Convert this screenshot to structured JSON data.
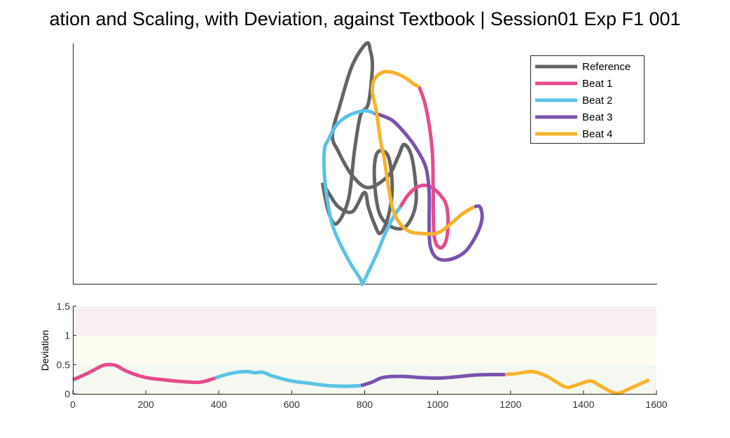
{
  "figure": {
    "title": "ation and Scaling, with Deviation, against Textbook | Session01 Exp F1 001"
  },
  "colors": {
    "reference": "#646464",
    "beat1": "#E64B8C",
    "beat2": "#5BC3E6",
    "beat3": "#7B52AE",
    "beat4": "#F8B32B",
    "band_high": "#F8F0F0",
    "band_mid": "#FDFDF2",
    "band_low": "#F4F8F0"
  },
  "chart_data": [
    {
      "type": "line",
      "name": "trajectory",
      "legend": {
        "placement": "top-right",
        "entries": [
          "Reference",
          "Beat 1",
          "Beat 2",
          "Beat 3",
          "Beat 4"
        ]
      },
      "series": [
        {
          "name": "Reference",
          "color": "#646464",
          "points": [
            [
              0.37,
              0.42
            ],
            [
              0.4,
              0.3
            ],
            [
              0.44,
              0.25
            ],
            [
              0.5,
              0.35
            ],
            [
              0.53,
              0.55
            ],
            [
              0.56,
              0.7
            ],
            [
              0.6,
              0.75
            ],
            [
              0.62,
              0.9
            ],
            [
              0.61,
              0.97
            ],
            [
              0.59,
              1.0
            ],
            [
              0.52,
              0.91
            ],
            [
              0.46,
              0.75
            ],
            [
              0.42,
              0.62
            ],
            [
              0.45,
              0.55
            ],
            [
              0.52,
              0.45
            ],
            [
              0.6,
              0.4
            ],
            [
              0.7,
              0.45
            ],
            [
              0.75,
              0.53
            ],
            [
              0.78,
              0.58
            ],
            [
              0.82,
              0.52
            ],
            [
              0.84,
              0.35
            ],
            [
              0.8,
              0.25
            ],
            [
              0.74,
              0.23
            ],
            [
              0.67,
              0.27
            ],
            [
              0.64,
              0.35
            ],
            [
              0.63,
              0.48
            ],
            [
              0.65,
              0.55
            ],
            [
              0.7,
              0.53
            ],
            [
              0.72,
              0.4
            ],
            [
              0.7,
              0.28
            ],
            [
              0.66,
              0.21
            ],
            [
              0.63,
              0.25
            ],
            [
              0.6,
              0.32
            ],
            [
              0.58,
              0.38
            ],
            [
              0.52,
              0.3
            ],
            [
              0.45,
              0.32
            ],
            [
              0.4,
              0.38
            ],
            [
              0.37,
              0.42
            ]
          ]
        },
        {
          "name": "Beat 1",
          "color": "#E64B8C",
          "points": [
            [
              0.855,
              0.82
            ],
            [
              0.89,
              0.73
            ],
            [
              0.92,
              0.56
            ],
            [
              0.925,
              0.4
            ],
            [
              0.93,
              0.2
            ],
            [
              0.96,
              0.15
            ],
            [
              0.99,
              0.18
            ],
            [
              1.0,
              0.26
            ],
            [
              0.99,
              0.33
            ],
            [
              0.96,
              0.37
            ],
            [
              0.92,
              0.4
            ],
            [
              0.88,
              0.41
            ],
            [
              0.84,
              0.4
            ],
            [
              0.8,
              0.37
            ],
            [
              0.76,
              0.32
            ]
          ]
        },
        {
          "name": "Beat 2",
          "color": "#5BC3E6",
          "points": [
            [
              0.76,
              0.32
            ],
            [
              0.72,
              0.27
            ],
            [
              0.68,
              0.2
            ],
            [
              0.64,
              0.12
            ],
            [
              0.6,
              0.05
            ],
            [
              0.57,
              0.0
            ],
            [
              0.56,
              0.02
            ],
            [
              0.5,
              0.1
            ],
            [
              0.43,
              0.22
            ],
            [
              0.4,
              0.32
            ],
            [
              0.38,
              0.45
            ],
            [
              0.38,
              0.56
            ],
            [
              0.4,
              0.6
            ],
            [
              0.44,
              0.66
            ],
            [
              0.5,
              0.7
            ],
            [
              0.58,
              0.72
            ],
            [
              0.63,
              0.71
            ]
          ]
        },
        {
          "name": "Beat 3",
          "color": "#7B52AE",
          "points": [
            [
              0.63,
              0.71
            ],
            [
              0.72,
              0.68
            ],
            [
              0.8,
              0.61
            ],
            [
              0.85,
              0.55
            ],
            [
              0.89,
              0.48
            ],
            [
              0.905,
              0.38
            ],
            [
              0.905,
              0.25
            ],
            [
              0.91,
              0.16
            ],
            [
              0.94,
              0.11
            ],
            [
              1.0,
              0.1
            ],
            [
              1.08,
              0.13
            ],
            [
              1.14,
              0.2
            ],
            [
              1.17,
              0.27
            ],
            [
              1.16,
              0.32
            ],
            [
              1.13,
              0.32
            ]
          ]
        },
        {
          "name": "Beat 4",
          "color": "#F8B32B",
          "points": [
            [
              1.13,
              0.32
            ],
            [
              1.07,
              0.29
            ],
            [
              1.0,
              0.24
            ],
            [
              0.94,
              0.21
            ],
            [
              0.86,
              0.21
            ],
            [
              0.8,
              0.22
            ],
            [
              0.75,
              0.26
            ],
            [
              0.72,
              0.32
            ],
            [
              0.7,
              0.41
            ],
            [
              0.68,
              0.52
            ],
            [
              0.66,
              0.6
            ],
            [
              0.64,
              0.72
            ],
            [
              0.62,
              0.8
            ],
            [
              0.63,
              0.85
            ],
            [
              0.67,
              0.88
            ],
            [
              0.72,
              0.88
            ],
            [
              0.78,
              0.86
            ],
            [
              0.83,
              0.83
            ],
            [
              0.855,
              0.82
            ]
          ]
        }
      ]
    },
    {
      "type": "line",
      "name": "deviation",
      "ylabel": "Deviation",
      "xlim": [
        0,
        1600
      ],
      "ylim": [
        0,
        1.5
      ],
      "xticks": [
        0,
        200,
        400,
        600,
        800,
        1000,
        1200,
        1400,
        1600
      ],
      "yticks": [
        0,
        0.5,
        1,
        1.5
      ],
      "ytick_labels": [
        "0",
        "0.5",
        "1",
        "1.5"
      ],
      "bands": [
        {
          "from": 1.0,
          "to": 1.5,
          "color": "#F8F0F0"
        },
        {
          "from": 0.5,
          "to": 1.0,
          "color": "#FDFDF2"
        },
        {
          "from": 0.0,
          "to": 0.5,
          "color": "#F4F8F0"
        }
      ],
      "series": [
        {
          "name": "Beat 1",
          "color": "#E64B8C",
          "x": [
            0,
            40,
            80,
            100,
            120,
            150,
            200,
            250,
            300,
            350,
            390
          ],
          "y": [
            0.24,
            0.35,
            0.48,
            0.5,
            0.48,
            0.38,
            0.28,
            0.24,
            0.21,
            0.2,
            0.27
          ]
        },
        {
          "name": "Beat 2",
          "color": "#5BC3E6",
          "x": [
            390,
            420,
            450,
            480,
            500,
            520,
            550,
            600,
            650,
            700,
            750,
            790
          ],
          "y": [
            0.27,
            0.33,
            0.37,
            0.38,
            0.36,
            0.37,
            0.3,
            0.22,
            0.18,
            0.14,
            0.13,
            0.14
          ]
        },
        {
          "name": "Beat 3",
          "color": "#7B52AE",
          "x": [
            790,
            820,
            850,
            900,
            950,
            1000,
            1050,
            1100,
            1150,
            1185
          ],
          "y": [
            0.14,
            0.2,
            0.28,
            0.3,
            0.28,
            0.27,
            0.29,
            0.32,
            0.33,
            0.33
          ]
        },
        {
          "name": "Beat 4",
          "color": "#F8B32B",
          "x": [
            1185,
            1220,
            1260,
            1300,
            1350,
            1380,
            1420,
            1450,
            1490,
            1530,
            1580
          ],
          "y": [
            0.33,
            0.35,
            0.38,
            0.3,
            0.12,
            0.15,
            0.22,
            0.12,
            0.01,
            0.1,
            0.24
          ]
        }
      ]
    }
  ]
}
